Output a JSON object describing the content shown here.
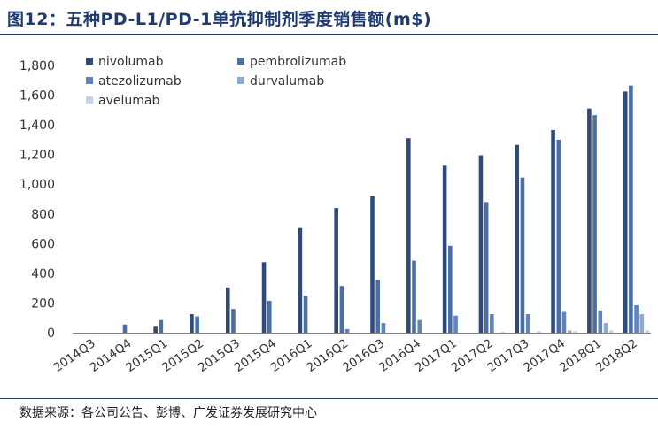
{
  "title": "图12：五种PD-L1/PD-1单抗抑制剂季度销售额(m$)",
  "source": "数据来源：各公司公告、彭博、广发证券发展研究中心",
  "colors": {
    "nivolumab": "#2f4b7c",
    "pembrolizumab": "#4a6fa5",
    "atezolizumab": "#5e83bf",
    "durvalumab": "#8fa9d1",
    "avelumab": "#c3d3ea",
    "axis": "#808080",
    "text": "#333333",
    "title": "#1f3b70"
  },
  "chart_data": {
    "type": "bar",
    "title": "五种PD-L1/PD-1单抗抑制剂季度销售额(m$)",
    "xlabel": "",
    "ylabel": "",
    "ylim": [
      0,
      1800
    ],
    "yticks": [
      0,
      200,
      400,
      600,
      800,
      1000,
      1200,
      1400,
      1600,
      1800
    ],
    "ytick_labels": [
      "0",
      "200",
      "400",
      "600",
      "800",
      "1,000",
      "1,200",
      "1,400",
      "1,600",
      "1,800"
    ],
    "legend_position": "top-left",
    "categories": [
      "2014Q3",
      "2014Q4",
      "2015Q1",
      "2015Q2",
      "2015Q3",
      "2015Q4",
      "2016Q1",
      "2016Q2",
      "2016Q3",
      "2016Q4",
      "2017Q1",
      "2017Q2",
      "2017Q3",
      "2017Q4",
      "2018Q1",
      "2018Q2"
    ],
    "series": [
      {
        "name": "nivolumab",
        "key": "nivolumab",
        "values": [
          0,
          0,
          40,
          125,
          305,
          475,
          705,
          840,
          920,
          1310,
          1125,
          1195,
          1265,
          1365,
          1510,
          1625
        ]
      },
      {
        "name": "pembrolizumab",
        "key": "pembrolizumab",
        "values": [
          0,
          55,
          85,
          110,
          160,
          215,
          250,
          315,
          355,
          485,
          585,
          880,
          1045,
          1300,
          1465,
          1665
        ]
      },
      {
        "name": "atezolizumab",
        "key": "atezolizumab",
        "values": [
          0,
          0,
          0,
          0,
          0,
          0,
          0,
          25,
          65,
          85,
          115,
          125,
          125,
          140,
          150,
          185
        ]
      },
      {
        "name": "durvalumab",
        "key": "durvalumab",
        "values": [
          0,
          0,
          0,
          0,
          0,
          0,
          0,
          0,
          0,
          0,
          0,
          0,
          0,
          15,
          65,
          125
        ]
      },
      {
        "name": "avelumab",
        "key": "avelumab",
        "values": [
          0,
          0,
          0,
          0,
          0,
          0,
          0,
          0,
          0,
          0,
          0,
          5,
          10,
          10,
          15,
          15
        ]
      }
    ]
  }
}
